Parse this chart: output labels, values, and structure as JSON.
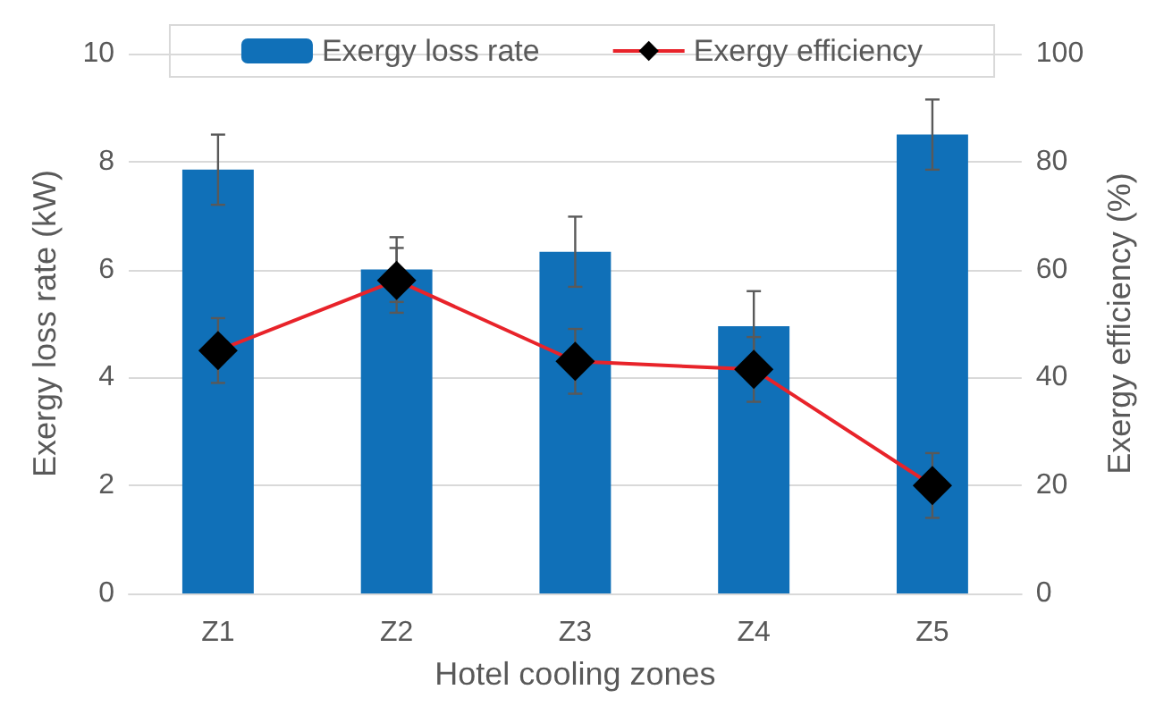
{
  "chart_data": {
    "type": "bar",
    "xlabel": "Hotel cooling zones",
    "ylabel": "Exergy loss rate (kW)",
    "y2label": "Exergy efficiency (%)",
    "categories": [
      "Z1",
      "Z2",
      "Z3",
      "Z4",
      "Z5"
    ],
    "series": [
      {
        "name": "Exergy loss rate",
        "color": "#1070b8",
        "values": [
          7.85,
          6.0,
          6.33,
          4.95,
          8.5
        ],
        "errors": [
          0.65,
          0.6,
          0.65,
          0.65,
          0.65
        ]
      },
      {
        "name": "Exergy efficiency",
        "type": "line",
        "axis": "y2",
        "color": "#e8232a",
        "marker": "diamond",
        "values": [
          45,
          58,
          43,
          41.5,
          20
        ],
        "errors": [
          6,
          6,
          6,
          6,
          6
        ]
      }
    ],
    "ylim": [
      0,
      10
    ],
    "yticks": [
      0,
      2,
      4,
      6,
      8,
      10
    ],
    "y2lim": [
      0,
      100
    ],
    "y2ticks": [
      0,
      20,
      40,
      60,
      80,
      100
    ],
    "grid": "y",
    "legend": "top"
  }
}
